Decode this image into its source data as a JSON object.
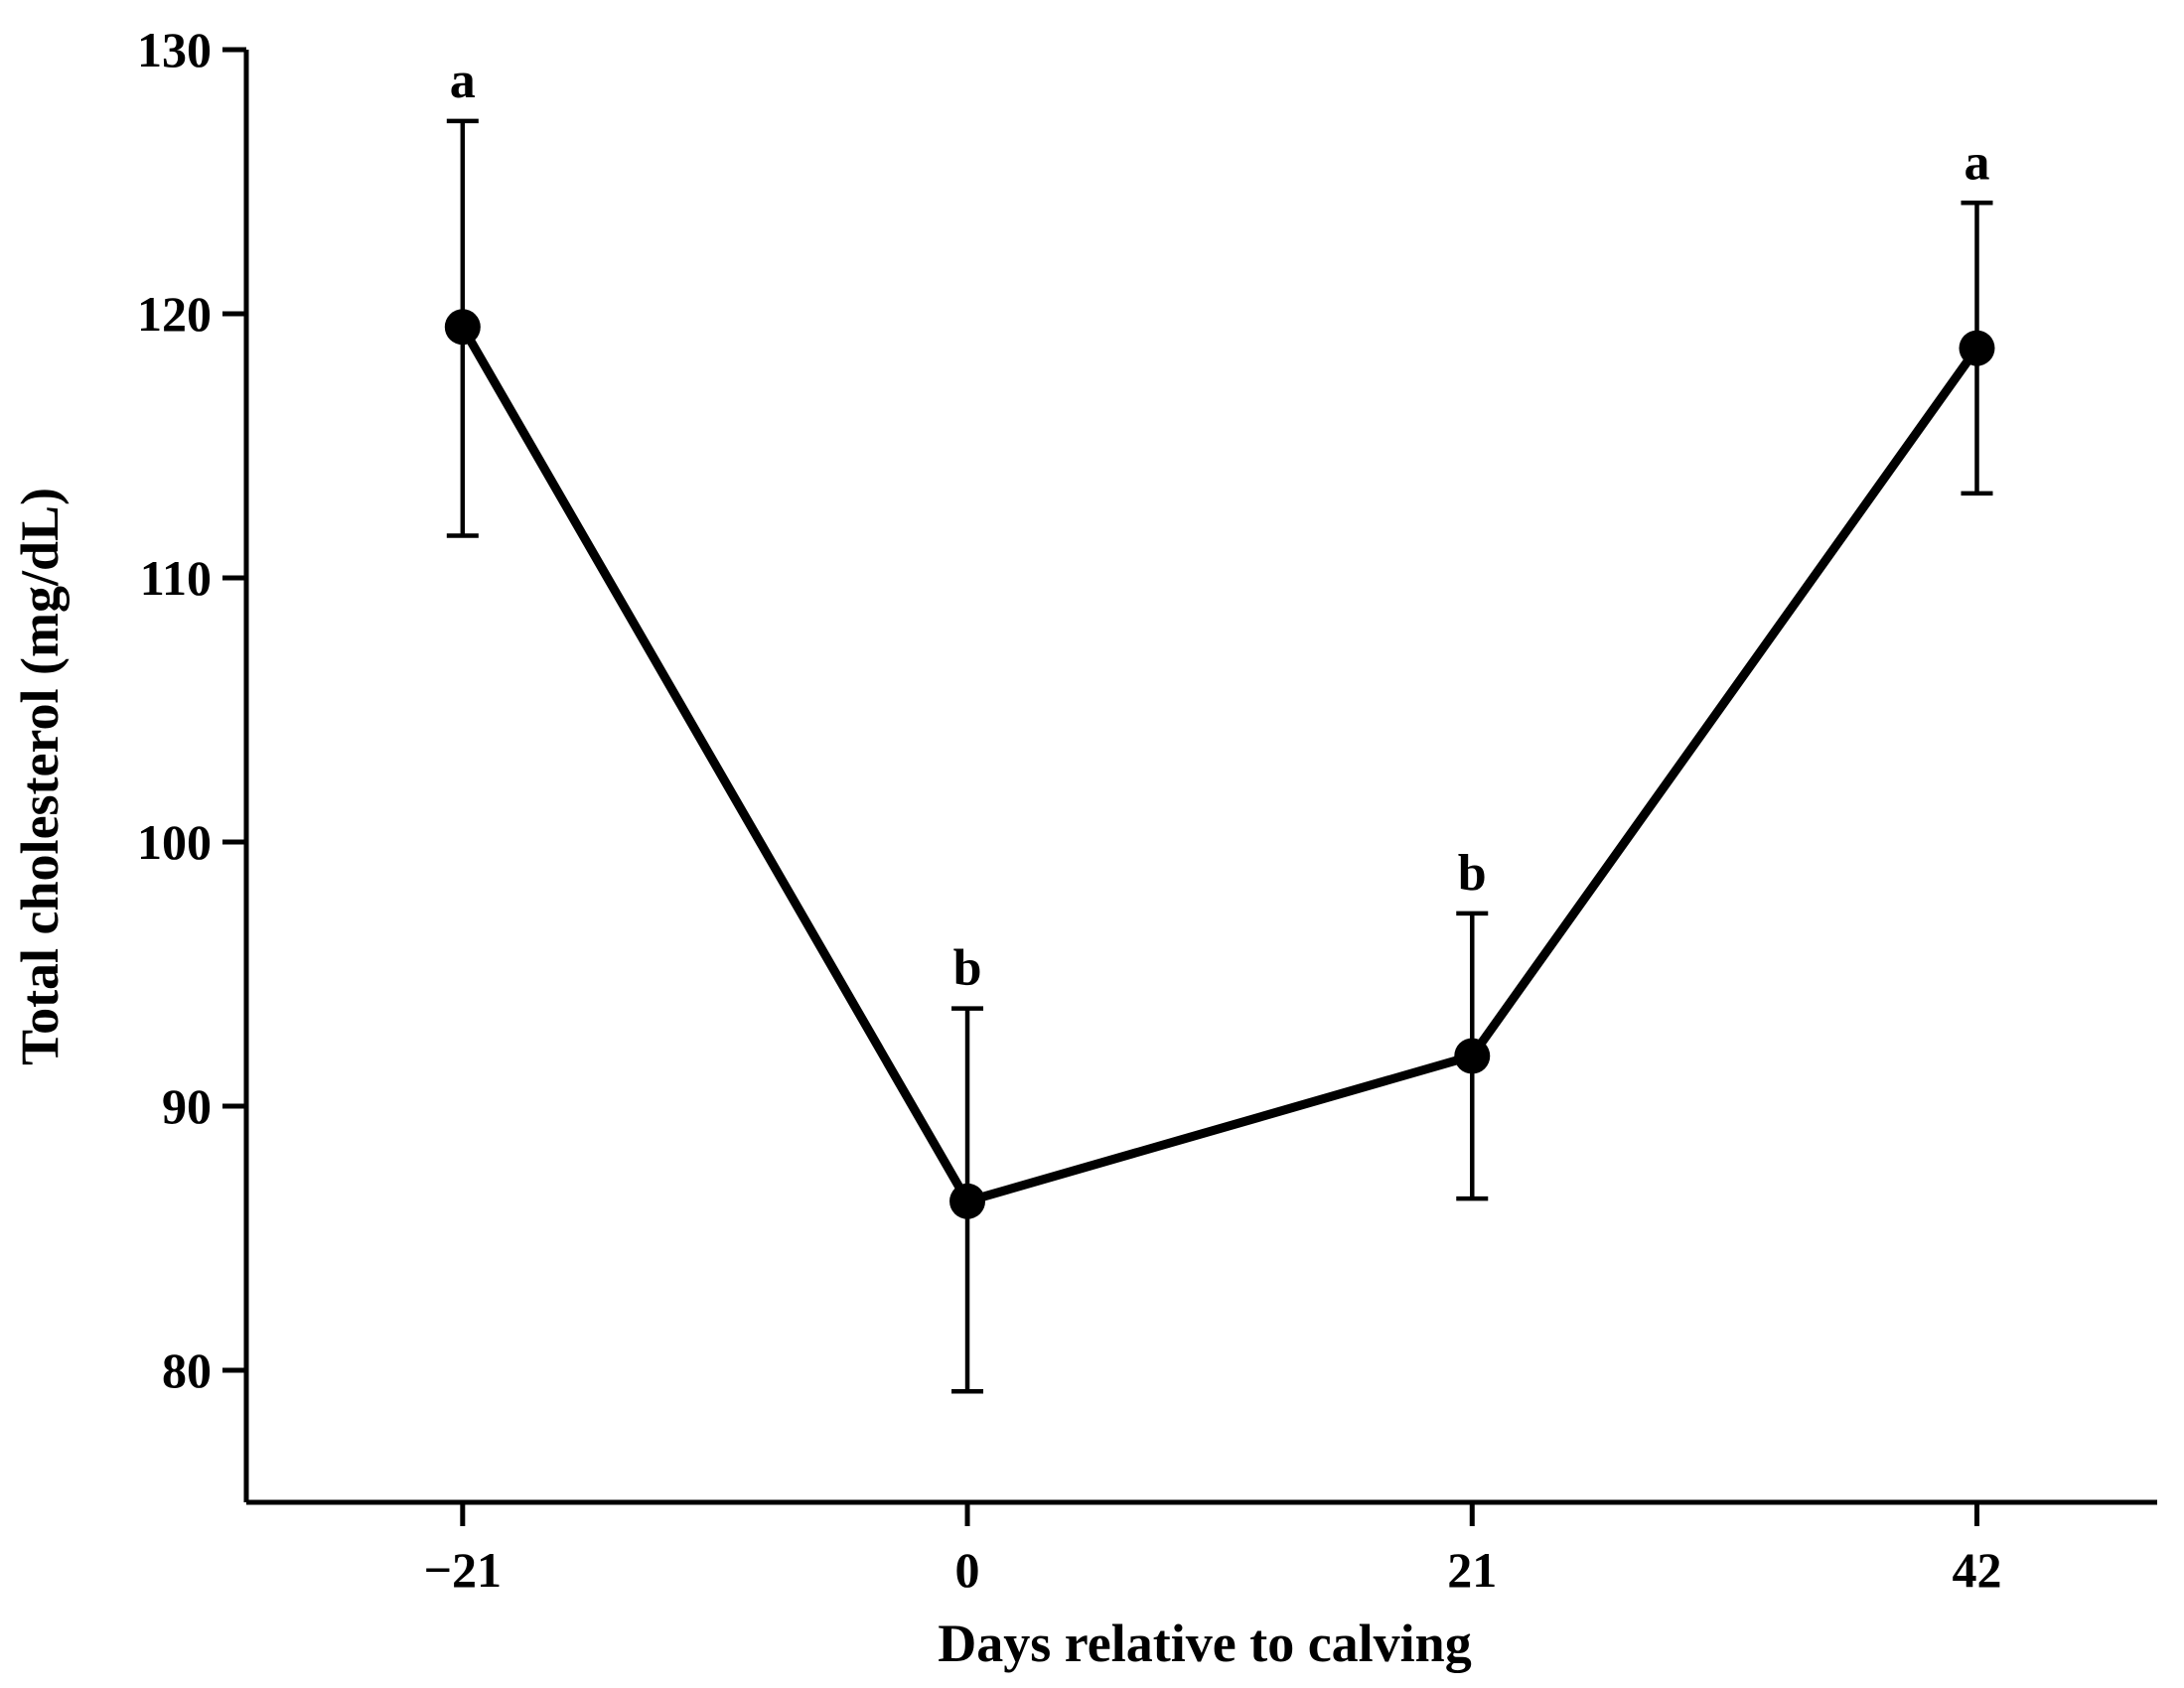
{
  "chart_data": {
    "type": "line",
    "xlabel": "Days relative to calving",
    "ylabel": "Total cholesterol (mg/dL)",
    "x": [
      -21,
      0,
      21,
      42
    ],
    "x_tick_labels": [
      "−21",
      "0",
      "21",
      "42"
    ],
    "y_ticks": [
      80,
      90,
      100,
      110,
      120,
      130
    ],
    "y_tick_labels": [
      "80",
      "90",
      "100",
      "110",
      "120",
      "130"
    ],
    "xlim": [
      -30,
      49.5
    ],
    "ylim": [
      75,
      130
    ],
    "series": [
      {
        "values": [
          119.5,
          86.4,
          91.9,
          118.7
        ],
        "error_upper": [
          127.3,
          93.7,
          97.3,
          124.2
        ],
        "error_lower": [
          111.6,
          79.2,
          86.5,
          113.2
        ],
        "annotations": [
          "a",
          "b",
          "b",
          "a"
        ],
        "color": "#000000",
        "marker": "filled-circle"
      }
    ],
    "grid": false,
    "legend": "none"
  }
}
